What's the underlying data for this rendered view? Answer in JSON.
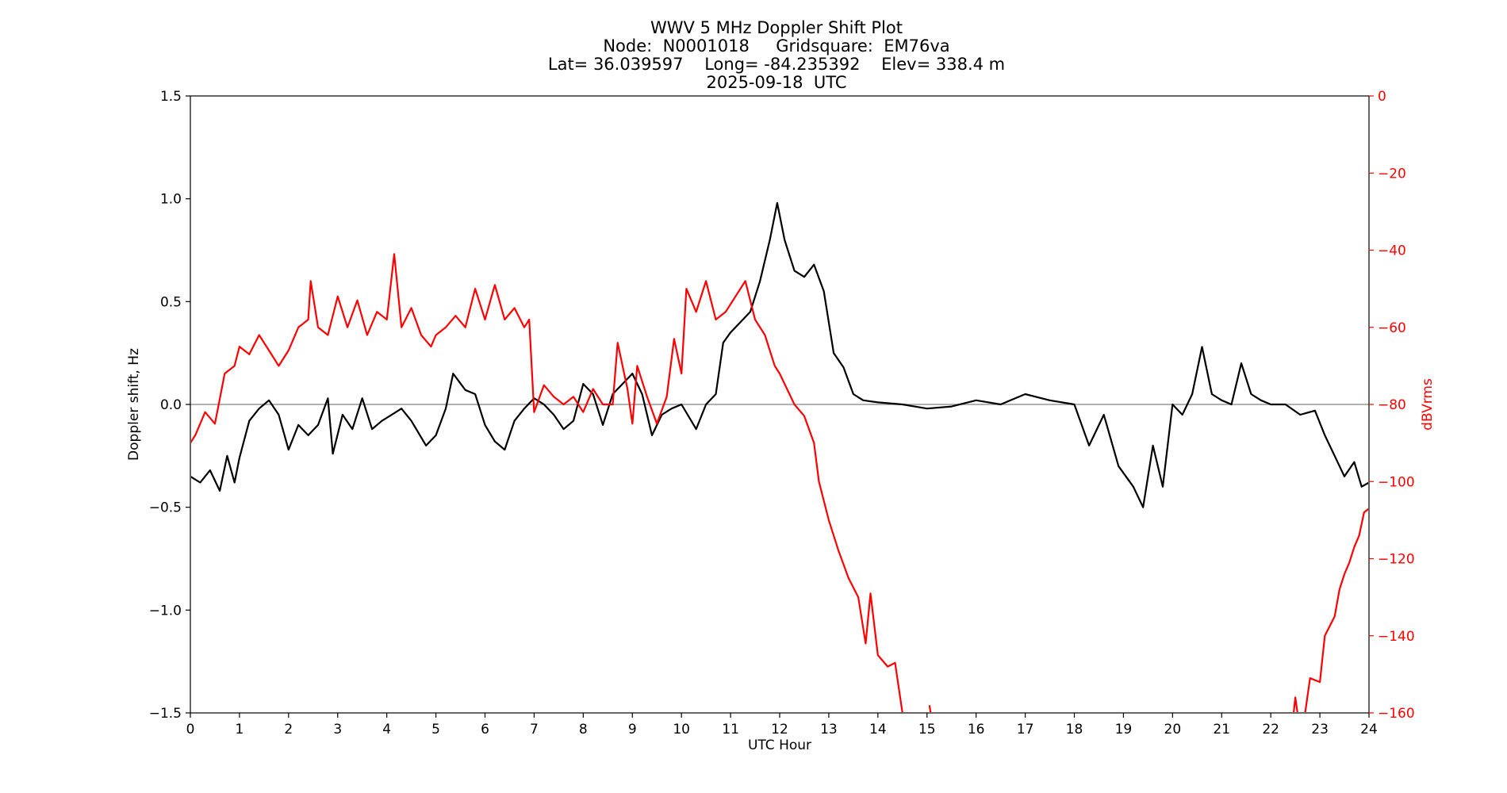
{
  "chart_data": {
    "type": "line",
    "title_lines": [
      "WWV 5 MHz Doppler Shift Plot",
      "Node:  N0001018     Gridsquare:  EM76va",
      "Lat= 36.039597    Long= -84.235392    Elev= 338.4 m",
      "2025-09-18  UTC"
    ],
    "xlabel": "UTC Hour",
    "ylabel": "Doppler shift, Hz",
    "y2label": "dBVrms",
    "xlim": [
      0,
      24
    ],
    "ylim": [
      -1.5,
      1.5
    ],
    "y2lim": [
      -160,
      0
    ],
    "xticks": [
      "0",
      "1",
      "2",
      "3",
      "4",
      "5",
      "6",
      "7",
      "8",
      "9",
      "10",
      "11",
      "12",
      "13",
      "14",
      "15",
      "16",
      "17",
      "18",
      "19",
      "20",
      "21",
      "22",
      "23",
      "24"
    ],
    "yticks": [
      "1.5",
      "1.0",
      "0.5",
      "0.0",
      "−0.5",
      "−1.0",
      "−1.5"
    ],
    "y2ticks": [
      "0",
      "−20",
      "−40",
      "−60",
      "−80",
      "−100",
      "−120",
      "−140",
      "−160"
    ],
    "grid": false,
    "zero_line": true,
    "colors": {
      "doppler": "#000000",
      "power": "#ff0000",
      "zero_line": "#999999"
    },
    "series": [
      {
        "axis": "left",
        "color": "#000000",
        "points": [
          [
            0,
            -0.35
          ],
          [
            0.2,
            -0.38
          ],
          [
            0.4,
            -0.32
          ],
          [
            0.6,
            -0.42
          ],
          [
            0.75,
            -0.25
          ],
          [
            0.9,
            -0.38
          ],
          [
            1.0,
            -0.26
          ],
          [
            1.2,
            -0.08
          ],
          [
            1.4,
            -0.02
          ],
          [
            1.6,
            0.02
          ],
          [
            1.8,
            -0.05
          ],
          [
            2.0,
            -0.22
          ],
          [
            2.2,
            -0.1
          ],
          [
            2.4,
            -0.15
          ],
          [
            2.6,
            -0.1
          ],
          [
            2.8,
            0.03
          ],
          [
            2.9,
            -0.24
          ],
          [
            3.1,
            -0.05
          ],
          [
            3.3,
            -0.12
          ],
          [
            3.5,
            0.03
          ],
          [
            3.7,
            -0.12
          ],
          [
            3.9,
            -0.08
          ],
          [
            4.1,
            -0.05
          ],
          [
            4.3,
            -0.02
          ],
          [
            4.5,
            -0.08
          ],
          [
            4.8,
            -0.2
          ],
          [
            5.0,
            -0.15
          ],
          [
            5.2,
            -0.02
          ],
          [
            5.35,
            0.15
          ],
          [
            5.6,
            0.07
          ],
          [
            5.8,
            0.05
          ],
          [
            6.0,
            -0.1
          ],
          [
            6.2,
            -0.18
          ],
          [
            6.4,
            -0.22
          ],
          [
            6.6,
            -0.08
          ],
          [
            6.8,
            -0.02
          ],
          [
            7.0,
            0.03
          ],
          [
            7.2,
            0.0
          ],
          [
            7.4,
            -0.05
          ],
          [
            7.6,
            -0.12
          ],
          [
            7.8,
            -0.08
          ],
          [
            8.0,
            0.1
          ],
          [
            8.2,
            0.05
          ],
          [
            8.4,
            -0.1
          ],
          [
            8.6,
            0.05
          ],
          [
            8.8,
            0.1
          ],
          [
            9.0,
            0.15
          ],
          [
            9.2,
            0.05
          ],
          [
            9.4,
            -0.15
          ],
          [
            9.6,
            -0.05
          ],
          [
            9.8,
            -0.02
          ],
          [
            10.0,
            0.0
          ],
          [
            10.3,
            -0.12
          ],
          [
            10.5,
            0.0
          ],
          [
            10.7,
            0.05
          ],
          [
            10.85,
            0.3
          ],
          [
            11.0,
            0.35
          ],
          [
            11.2,
            0.4
          ],
          [
            11.4,
            0.45
          ],
          [
            11.6,
            0.6
          ],
          [
            11.8,
            0.8
          ],
          [
            11.95,
            0.98
          ],
          [
            12.1,
            0.8
          ],
          [
            12.3,
            0.65
          ],
          [
            12.5,
            0.62
          ],
          [
            12.7,
            0.68
          ],
          [
            12.9,
            0.55
          ],
          [
            13.1,
            0.25
          ],
          [
            13.3,
            0.18
          ],
          [
            13.5,
            0.05
          ],
          [
            13.7,
            0.02
          ],
          [
            14.0,
            0.01
          ],
          [
            14.5,
            0.0
          ],
          [
            15.0,
            -0.02
          ],
          [
            15.5,
            -0.01
          ],
          [
            16.0,
            0.02
          ],
          [
            16.5,
            0.0
          ],
          [
            17.0,
            0.05
          ],
          [
            17.5,
            0.02
          ],
          [
            18.0,
            0.0
          ],
          [
            18.3,
            -0.2
          ],
          [
            18.6,
            -0.05
          ],
          [
            18.9,
            -0.3
          ],
          [
            19.2,
            -0.4
          ],
          [
            19.4,
            -0.5
          ],
          [
            19.6,
            -0.2
          ],
          [
            19.8,
            -0.4
          ],
          [
            20.0,
            0.0
          ],
          [
            20.2,
            -0.05
          ],
          [
            20.4,
            0.05
          ],
          [
            20.6,
            0.28
          ],
          [
            20.8,
            0.05
          ],
          [
            21.0,
            0.02
          ],
          [
            21.2,
            0.0
          ],
          [
            21.4,
            0.2
          ],
          [
            21.6,
            0.05
          ],
          [
            21.8,
            0.02
          ],
          [
            22.0,
            0.0
          ],
          [
            22.3,
            0.0
          ],
          [
            22.6,
            -0.05
          ],
          [
            22.9,
            -0.03
          ],
          [
            23.1,
            -0.15
          ],
          [
            23.3,
            -0.25
          ],
          [
            23.5,
            -0.35
          ],
          [
            23.7,
            -0.28
          ],
          [
            23.85,
            -0.4
          ],
          [
            24.0,
            -0.38
          ]
        ]
      },
      {
        "axis": "right",
        "color": "#ff0000",
        "points": [
          [
            0,
            -90
          ],
          [
            0.1,
            -88
          ],
          [
            0.3,
            -82
          ],
          [
            0.5,
            -85
          ],
          [
            0.7,
            -72
          ],
          [
            0.9,
            -70
          ],
          [
            1.0,
            -65
          ],
          [
            1.2,
            -67
          ],
          [
            1.4,
            -62
          ],
          [
            1.6,
            -66
          ],
          [
            1.8,
            -70
          ],
          [
            2.0,
            -66
          ],
          [
            2.2,
            -60
          ],
          [
            2.4,
            -58
          ],
          [
            2.45,
            -48
          ],
          [
            2.6,
            -60
          ],
          [
            2.8,
            -62
          ],
          [
            3.0,
            -52
          ],
          [
            3.2,
            -60
          ],
          [
            3.4,
            -53
          ],
          [
            3.6,
            -62
          ],
          [
            3.8,
            -56
          ],
          [
            4.0,
            -58
          ],
          [
            4.15,
            -41
          ],
          [
            4.3,
            -60
          ],
          [
            4.5,
            -55
          ],
          [
            4.7,
            -62
          ],
          [
            4.9,
            -65
          ],
          [
            5.0,
            -62
          ],
          [
            5.2,
            -60
          ],
          [
            5.4,
            -57
          ],
          [
            5.6,
            -60
          ],
          [
            5.8,
            -50
          ],
          [
            6.0,
            -58
          ],
          [
            6.2,
            -49
          ],
          [
            6.4,
            -58
          ],
          [
            6.6,
            -55
          ],
          [
            6.8,
            -60
          ],
          [
            6.9,
            -58
          ],
          [
            7.0,
            -82
          ],
          [
            7.2,
            -75
          ],
          [
            7.4,
            -78
          ],
          [
            7.6,
            -80
          ],
          [
            7.8,
            -78
          ],
          [
            8.0,
            -82
          ],
          [
            8.2,
            -76
          ],
          [
            8.4,
            -80
          ],
          [
            8.6,
            -80
          ],
          [
            8.7,
            -64
          ],
          [
            8.9,
            -76
          ],
          [
            9.0,
            -85
          ],
          [
            9.1,
            -70
          ],
          [
            9.3,
            -78
          ],
          [
            9.5,
            -85
          ],
          [
            9.7,
            -78
          ],
          [
            9.85,
            -63
          ],
          [
            10.0,
            -72
          ],
          [
            10.1,
            -50
          ],
          [
            10.3,
            -56
          ],
          [
            10.5,
            -48
          ],
          [
            10.7,
            -58
          ],
          [
            10.9,
            -56
          ],
          [
            11.1,
            -52
          ],
          [
            11.3,
            -48
          ],
          [
            11.5,
            -58
          ],
          [
            11.7,
            -62
          ],
          [
            11.9,
            -70
          ],
          [
            12.0,
            -72
          ],
          [
            12.3,
            -80
          ],
          [
            12.5,
            -83
          ],
          [
            12.7,
            -90
          ],
          [
            12.8,
            -100
          ],
          [
            13.0,
            -110
          ],
          [
            13.2,
            -118
          ],
          [
            13.4,
            -125
          ],
          [
            13.6,
            -130
          ],
          [
            13.75,
            -142
          ],
          [
            13.85,
            -129
          ],
          [
            14.0,
            -145
          ],
          [
            14.2,
            -148
          ],
          [
            14.35,
            -147
          ],
          [
            14.5,
            -160
          ],
          [
            14.6,
            -162
          ]
        ]
      },
      {
        "axis": "right",
        "color": "#ff0000",
        "points": [
          [
            15.05,
            -158
          ],
          [
            15.1,
            -162
          ]
        ]
      },
      {
        "axis": "right",
        "color": "#ff0000",
        "points": [
          [
            22.45,
            -162
          ],
          [
            22.5,
            -156
          ],
          [
            22.6,
            -165
          ],
          [
            22.7,
            -160
          ],
          [
            22.8,
            -151
          ],
          [
            23.0,
            -152
          ],
          [
            23.1,
            -140
          ],
          [
            23.3,
            -135
          ],
          [
            23.4,
            -128
          ],
          [
            23.5,
            -124
          ],
          [
            23.6,
            -121
          ],
          [
            23.7,
            -117
          ],
          [
            23.8,
            -114
          ],
          [
            23.9,
            -108
          ],
          [
            24.0,
            -107
          ]
        ]
      }
    ]
  }
}
